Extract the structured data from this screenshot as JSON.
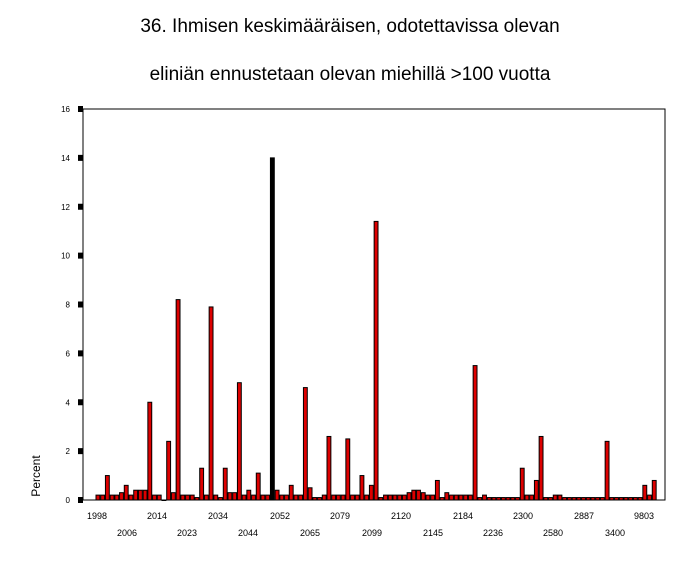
{
  "chart_data": {
    "type": "bar",
    "title_lines": [
      "36. Ihmisen keskimääräisen, odotettavissa olevan",
      "eliniän ennustetaan olevan miehillä >100 vuotta"
    ],
    "ylabel": "Percent",
    "xlabel": "",
    "ylim": [
      0,
      16
    ],
    "yticks": [
      0,
      2,
      4,
      6,
      8,
      10,
      12,
      14,
      16
    ],
    "ytick_labels": [
      "0",
      "2",
      "4",
      "6",
      "8",
      "10",
      "12",
      "14",
      "16"
    ],
    "grid": false,
    "legend": "none",
    "x_tick_labels_row1": [
      "1998",
      "2014",
      "2034",
      "2052",
      "2079",
      "2120",
      "2184",
      "2300",
      "2887",
      "9803"
    ],
    "x_tick_labels_row2": [
      "2006",
      "2023",
      "2044",
      "2065",
      "2099",
      "2145",
      "2236",
      "2580",
      "3400"
    ],
    "values": [
      0.2,
      0.2,
      1.0,
      0.2,
      0.2,
      0.3,
      0.6,
      0.2,
      0.4,
      0.4,
      0.4,
      4.0,
      0.2,
      0.2,
      0.0,
      2.4,
      0.3,
      8.2,
      0.2,
      0.2,
      0.2,
      0.1,
      1.3,
      0.2,
      7.9,
      0.2,
      0.1,
      1.3,
      0.3,
      0.3,
      4.8,
      0.2,
      0.4,
      0.2,
      1.1,
      0.2,
      0.2,
      14.0,
      0.4,
      0.2,
      0.2,
      0.6,
      0.2,
      0.2,
      4.6,
      0.5,
      0.1,
      0.1,
      0.2,
      2.6,
      0.2,
      0.2,
      0.2,
      2.5,
      0.2,
      0.2,
      1.0,
      0.2,
      0.6,
      11.4,
      0.1,
      0.2,
      0.2,
      0.2,
      0.2,
      0.2,
      0.3,
      0.4,
      0.4,
      0.3,
      0.2,
      0.2,
      0.8,
      0.1,
      0.3,
      0.2,
      0.2,
      0.2,
      0.2,
      0.2,
      5.5,
      0.1,
      0.2,
      0.1,
      0.1,
      0.1,
      0.1,
      0.1,
      0.1,
      0.1,
      1.3,
      0.2,
      0.2,
      0.8,
      2.6,
      0.1,
      0.1,
      0.2,
      0.2,
      0.1,
      0.1,
      0.1,
      0.1,
      0.1,
      0.1,
      0.1,
      0.1,
      0.1,
      2.4,
      0.1,
      0.1,
      0.1,
      0.1,
      0.1,
      0.1,
      0.1,
      0.6,
      0.2,
      0.8
    ],
    "highlight_index": 37,
    "colors": {
      "bar": "#dd0000",
      "highlight_bar": "#000000",
      "outline": "#000000",
      "background": "#ffffff"
    }
  }
}
